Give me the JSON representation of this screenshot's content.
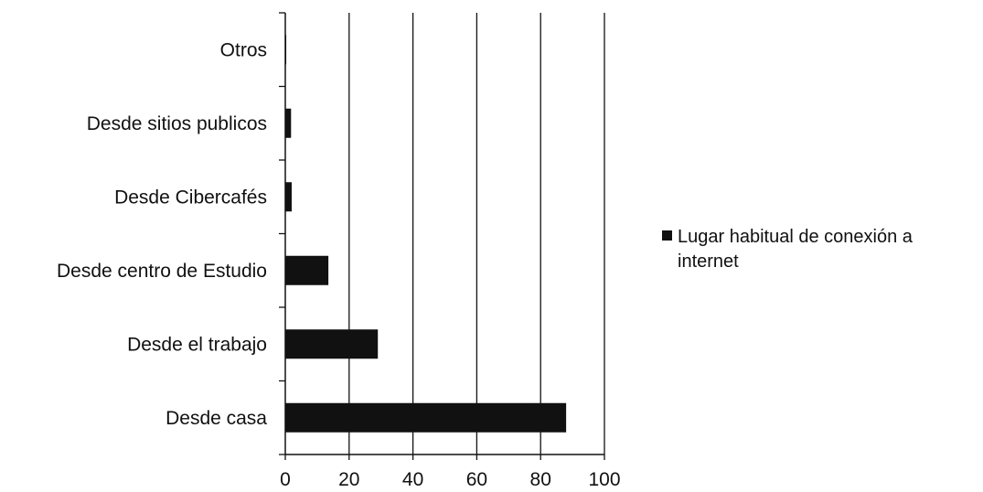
{
  "chart_data": {
    "type": "bar",
    "orientation": "horizontal",
    "categories": [
      "Otros",
      "Desde sitios publicos",
      "Desde Cibercafés",
      "Desde centro de Estudio",
      "Desde el trabajo",
      "Desde casa"
    ],
    "series": [
      {
        "name": "Lugar habitual de conexión a internet",
        "values": [
          0.3,
          1.8,
          2.0,
          13.5,
          29.0,
          88.0
        ]
      }
    ],
    "title": "",
    "xlabel": "",
    "ylabel": "",
    "xlim": [
      0,
      100
    ],
    "xticks": [
      0,
      20,
      40,
      60,
      80,
      100
    ],
    "xtick_labels": [
      "0",
      "20",
      "40",
      "60",
      "80",
      "100"
    ],
    "grid": "vertical major gridlines",
    "legend": {
      "position": "right",
      "lines": [
        "Lugar habitual de conexión a",
        "internet"
      ]
    },
    "colors": {
      "bar": "#111111",
      "gridline": "#111111",
      "axis": "#111111",
      "text": "#111111",
      "background": "#ffffff"
    }
  }
}
